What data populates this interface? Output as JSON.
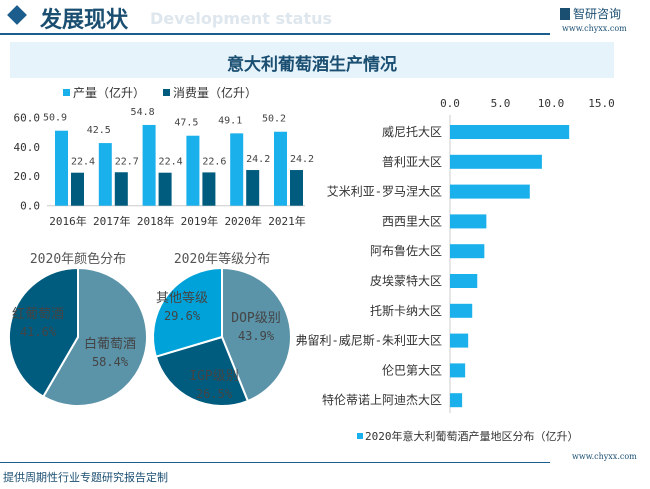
{
  "header": {
    "title": "发展现状",
    "ghost": "Development status",
    "logo": "智研咨询",
    "url": "www.chyxx.com"
  },
  "banner": {
    "title": "意大利葡萄酒生产情况"
  },
  "footer": {
    "text": "提供周期性行业专题研究报告定制",
    "url": "www.chyxx.com"
  },
  "colors": {
    "production": "#1ab0eb",
    "consumption": "#005c7e",
    "light_slice": "#5b93a8",
    "bright_slice": "#00a3d9"
  },
  "chart_data": [
    {
      "type": "bar",
      "categories": [
        "2016年",
        "2017年",
        "2018年",
        "2019年",
        "2020年",
        "2021年"
      ],
      "series": [
        {
          "name": "产量（亿升）",
          "values": [
            50.9,
            42.5,
            54.8,
            47.5,
            49.1,
            50.2
          ]
        },
        {
          "name": "消费量（亿升）",
          "values": [
            22.4,
            22.7,
            22.4,
            22.6,
            24.2,
            24.2
          ]
        }
      ],
      "yticks": [
        "0.0",
        "20.0",
        "40.0",
        "60.0"
      ],
      "ylim": [
        0,
        60
      ],
      "legend": "top"
    },
    {
      "type": "pie",
      "title": "2020年颜色分布",
      "slices": [
        {
          "label": "白葡萄酒",
          "value": 58.4,
          "display": "58.4%"
        },
        {
          "label": "红葡萄酒",
          "value": 41.6,
          "display": "41.6%"
        }
      ]
    },
    {
      "type": "pie",
      "title": "2020年等级分布",
      "slices": [
        {
          "label": "DOP级别",
          "value": 43.9,
          "display": "43.9%"
        },
        {
          "label": "IGP级别",
          "value": 26.5,
          "display": "26.5%"
        },
        {
          "label": "其他等级",
          "value": 29.6,
          "display": "29.6%"
        }
      ]
    },
    {
      "type": "bar",
      "orientation": "horizontal",
      "legend_label": "2020年意大利葡萄酒产量地区分布（亿升）",
      "categories": [
        "威尼托大区",
        "普利亚大区",
        "艾米利亚-罗马涅大区",
        "西西里大区",
        "阿布鲁佐大区",
        "皮埃蒙特大区",
        "托斯卡纳大区",
        "弗留利-威尼斯-朱利亚大区",
        "伦巴第大区",
        "特伦蒂诺上阿迪杰大区"
      ],
      "values": [
        11.8,
        9.1,
        7.9,
        3.6,
        3.4,
        2.7,
        2.2,
        1.8,
        1.5,
        1.2
      ],
      "xticks": [
        "0.0",
        "5.0",
        "10.0",
        "15.0"
      ],
      "xlim": [
        0,
        15
      ],
      "legend": "bottom"
    }
  ]
}
